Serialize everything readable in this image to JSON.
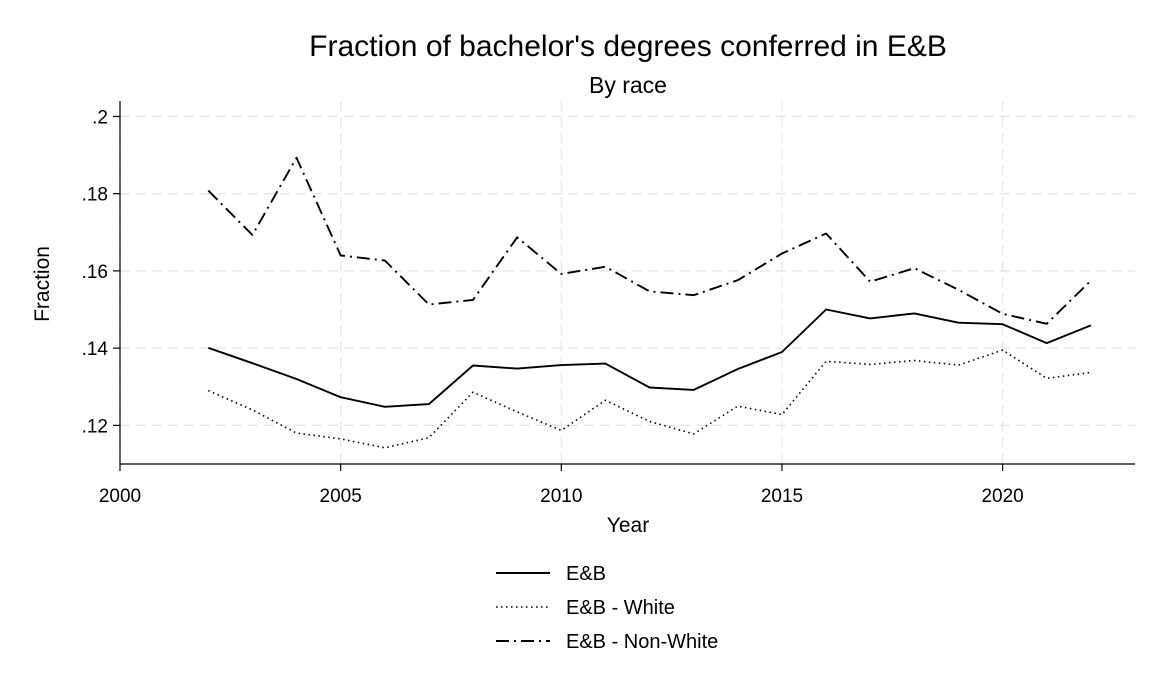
{
  "chart_data": {
    "type": "line",
    "title": "Fraction of bachelor's degrees conferred in E&B",
    "subtitle": "By race",
    "xlabel": "Year",
    "ylabel": "Fraction",
    "xlim": [
      2000,
      2023
    ],
    "ylim": [
      0.11,
      0.204
    ],
    "x_ticks": [
      2000,
      2005,
      2010,
      2015,
      2020
    ],
    "x_tick_labels": [
      "2000",
      "2005",
      "2010",
      "2015",
      "2020"
    ],
    "y_ticks": [
      0.12,
      0.14,
      0.16,
      0.18,
      0.2
    ],
    "y_tick_labels": [
      ".12",
      ".14",
      ".16",
      ".18",
      ".2"
    ],
    "grid": true,
    "legend_position": "bottom",
    "x": [
      2002,
      2003,
      2004,
      2005,
      2006,
      2007,
      2008,
      2009,
      2010,
      2011,
      2012,
      2013,
      2014,
      2015,
      2016,
      2017,
      2018,
      2019,
      2020,
      2021,
      2022
    ],
    "series": [
      {
        "name": "E&B",
        "style": "solid",
        "color": "#000000",
        "values": [
          0.1401,
          0.1361,
          0.132,
          0.1273,
          0.1248,
          0.1255,
          0.1355,
          0.1347,
          0.1356,
          0.136,
          0.1298,
          0.1292,
          0.1346,
          0.139,
          0.15,
          0.1477,
          0.149,
          0.1466,
          0.1462,
          0.1413,
          0.1459
        ]
      },
      {
        "name": "E&B - White",
        "style": "dotted",
        "color": "#000000",
        "values": [
          0.129,
          0.124,
          0.118,
          0.1165,
          0.1142,
          0.1168,
          0.1286,
          0.1235,
          0.1187,
          0.1265,
          0.121,
          0.1178,
          0.125,
          0.1228,
          0.1366,
          0.1358,
          0.1368,
          0.1356,
          0.1395,
          0.1322,
          0.1337
        ]
      },
      {
        "name": "E&B - Non-White",
        "style": "dashdot",
        "color": "#000000",
        "values": [
          0.1808,
          0.1693,
          0.1893,
          0.164,
          0.1627,
          0.1513,
          0.1525,
          0.1687,
          0.1592,
          0.1611,
          0.1547,
          0.1537,
          0.1576,
          0.1645,
          0.1697,
          0.1572,
          0.1607,
          0.1551,
          0.1489,
          0.1463,
          0.1575
        ]
      }
    ]
  }
}
